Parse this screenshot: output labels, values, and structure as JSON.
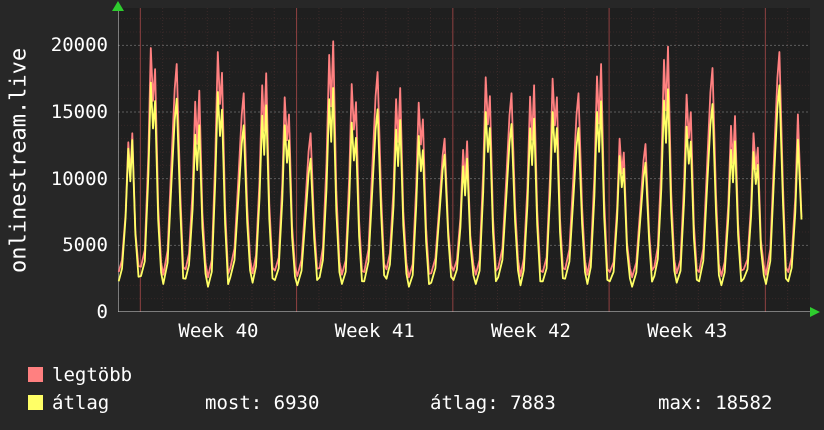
{
  "app": {
    "background": "#272727",
    "plot_background": "#1f1f1f",
    "text_color": "#ffffff",
    "axis_arrow_color": "#2ecc2e"
  },
  "footer": {
    "legend": [
      {
        "label": "legtöbb",
        "color": "#ff8080"
      },
      {
        "label": "átlag",
        "color": "#ffff66"
      }
    ],
    "stats": {
      "most": "most: 6930",
      "atlag": "átlag: 7883",
      "max": "max: 18582"
    }
  },
  "chart_data": {
    "type": "line",
    "title": "onlinestream.live",
    "ylabel": "onlinestream.live",
    "xlabel": "",
    "ylim": [
      0,
      22800
    ],
    "yticks": [
      0,
      5000,
      10000,
      15000,
      20000
    ],
    "grid": true,
    "legend_position": "bottom-left",
    "days": 31,
    "week_labels": [
      "Week 40",
      "Week 41",
      "Week 42",
      "Week 43"
    ],
    "week_label_day_centers": [
      4.5,
      11.5,
      18.5,
      25.5
    ],
    "week_tick_days": [
      1,
      8,
      15,
      22,
      29
    ],
    "stats": {
      "most": 6930,
      "atlag": 7883,
      "max": 18582
    },
    "series": [
      {
        "name": "legtöbb",
        "color": "#ff8080",
        "end_value": 7100,
        "daily_peaks": [
          13400,
          19800,
          18600,
          16600,
          19500,
          16400,
          17900,
          16100,
          13400,
          20300,
          17100,
          18000,
          16800,
          15700,
          13000,
          12800,
          17600,
          16400,
          17000,
          17500,
          16400,
          18600,
          13000,
          12600,
          19900,
          16300,
          18300,
          14700,
          13400,
          19500,
          15600
        ],
        "daily_lows": [
          3000,
          3400,
          2800,
          3200,
          2600,
          3300,
          2900,
          3100,
          2700,
          3300,
          2800,
          3000,
          3200,
          2600,
          2900,
          3100,
          2800,
          3300,
          2700,
          3000,
          3200,
          2800,
          3000,
          2600,
          3400,
          2900,
          3000,
          2700,
          3200,
          2800,
          3000
        ]
      },
      {
        "name": "átlag",
        "color": "#ffff66",
        "end_value": 6930,
        "daily_peaks": [
          12900,
          17200,
          16000,
          14000,
          16500,
          14000,
          15500,
          14000,
          11500,
          16800,
          14200,
          15200,
          14400,
          13200,
          11800,
          11500,
          15000,
          14100,
          14500,
          15000,
          13800,
          15800,
          11700,
          11200,
          16700,
          13900,
          15600,
          12800,
          12000,
          17000,
          13600
        ],
        "daily_lows": [
          2300,
          2700,
          2100,
          2500,
          1900,
          2600,
          2200,
          2400,
          2000,
          2600,
          2100,
          2300,
          2500,
          1900,
          2200,
          2400,
          2100,
          2600,
          2000,
          2300,
          2500,
          2100,
          2300,
          1900,
          2700,
          2200,
          2300,
          2000,
          2500,
          2100,
          2300
        ]
      }
    ]
  }
}
